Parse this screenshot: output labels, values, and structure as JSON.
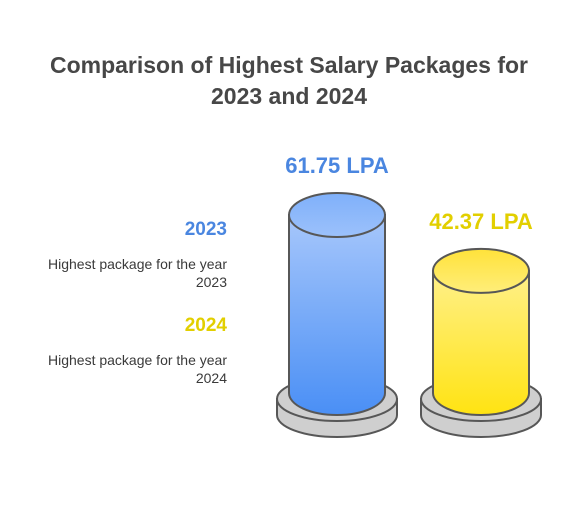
{
  "chart_data": {
    "type": "bar",
    "title_line1": "Comparison of Highest Salary Packages for",
    "title_line2": "2023 and 2024",
    "categories": [
      "2023",
      "2024"
    ],
    "values": [
      61.75,
      42.37
    ],
    "unit": "LPA",
    "value_labels": [
      "61.75 LPA",
      "42.37 LPA"
    ],
    "legend": [
      {
        "year": "2023",
        "desc_line1": "Highest package for the year",
        "desc_line2": "2023",
        "color": "#4a8ff5"
      },
      {
        "year": "2024",
        "desc_line1": "Highest package for the year",
        "desc_line2": "2024",
        "color": "#e2d000"
      }
    ]
  },
  "colors": {
    "blue_label": "#4a86e0",
    "yellow_label": "#e2cf00",
    "base": "#cfcfcf",
    "outline": "#575757",
    "title": "#474747"
  }
}
